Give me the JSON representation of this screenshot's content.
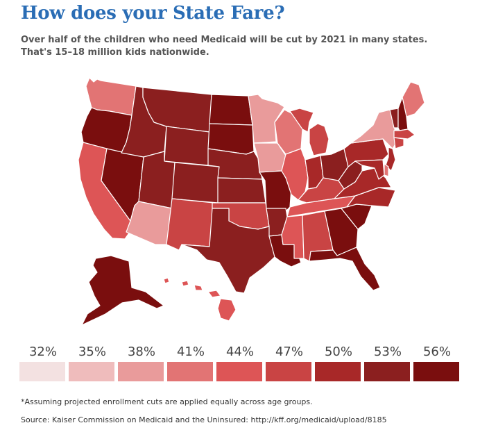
{
  "header": {
    "title": "How does your State Fare?",
    "subtitle_line1": "Over half of the children who need Medicaid will be cut by 2021 in many states.",
    "subtitle_line2": "That's 15–18 million kids nationwide."
  },
  "legend": {
    "items": [
      {
        "label": "32%",
        "color": "#f3e1e1"
      },
      {
        "label": "35%",
        "color": "#efbcbc"
      },
      {
        "label": "38%",
        "color": "#e99b9b"
      },
      {
        "label": "41%",
        "color": "#e27474"
      },
      {
        "label": "44%",
        "color": "#dd5556"
      },
      {
        "label": "47%",
        "color": "#c94444"
      },
      {
        "label": "50%",
        "color": "#a82828"
      },
      {
        "label": "53%",
        "color": "#8b1f1f"
      },
      {
        "label": "56%",
        "color": "#7a0e0e"
      }
    ]
  },
  "footnote": "*Assuming projected enrollment cuts are applied equally across age groups.",
  "source": "Source: Kaiser Commission on Medicaid and the Uninsured: http://kff.org/medicaid/upload/8185",
  "map_data": {
    "border_color": "#ffffff",
    "states": [
      {
        "id": "WA",
        "level": 3
      },
      {
        "id": "OR",
        "level": 8
      },
      {
        "id": "CA",
        "level": 4
      },
      {
        "id": "NV",
        "level": 8
      },
      {
        "id": "ID",
        "level": 7
      },
      {
        "id": "MT",
        "level": 7
      },
      {
        "id": "WY",
        "level": 7
      },
      {
        "id": "UT",
        "level": 7
      },
      {
        "id": "AZ",
        "level": 2
      },
      {
        "id": "CO",
        "level": 7
      },
      {
        "id": "NM",
        "level": 5
      },
      {
        "id": "ND",
        "level": 8
      },
      {
        "id": "SD",
        "level": 8
      },
      {
        "id": "NE",
        "level": 7
      },
      {
        "id": "KS",
        "level": 7
      },
      {
        "id": "OK",
        "level": 5
      },
      {
        "id": "TX",
        "level": 7
      },
      {
        "id": "MN",
        "level": 2
      },
      {
        "id": "IA",
        "level": 2
      },
      {
        "id": "MO",
        "level": 8
      },
      {
        "id": "AR",
        "level": 7
      },
      {
        "id": "LA",
        "level": 8
      },
      {
        "id": "WI",
        "level": 3
      },
      {
        "id": "IL",
        "level": 4
      },
      {
        "id": "MI",
        "level": 5
      },
      {
        "id": "IN",
        "level": 6
      },
      {
        "id": "OH",
        "level": 7
      },
      {
        "id": "KY",
        "level": 5
      },
      {
        "id": "TN",
        "level": 4
      },
      {
        "id": "MS",
        "level": 4
      },
      {
        "id": "AL",
        "level": 5
      },
      {
        "id": "GA",
        "level": 8
      },
      {
        "id": "FL",
        "level": 8
      },
      {
        "id": "SC",
        "level": 8
      },
      {
        "id": "NC",
        "level": 6
      },
      {
        "id": "VA",
        "level": 6
      },
      {
        "id": "WV",
        "level": 7
      },
      {
        "id": "PA",
        "level": 6
      },
      {
        "id": "NY",
        "level": 2
      },
      {
        "id": "ME",
        "level": 3
      },
      {
        "id": "VT",
        "level": 7
      },
      {
        "id": "NH",
        "level": 8
      },
      {
        "id": "MA",
        "level": 5
      },
      {
        "id": "CT",
        "level": 5
      },
      {
        "id": "NJ",
        "level": 6
      },
      {
        "id": "DE",
        "level": 3
      },
      {
        "id": "MD",
        "level": 6
      },
      {
        "id": "AK",
        "level": 8
      },
      {
        "id": "HI",
        "level": 4
      }
    ]
  }
}
